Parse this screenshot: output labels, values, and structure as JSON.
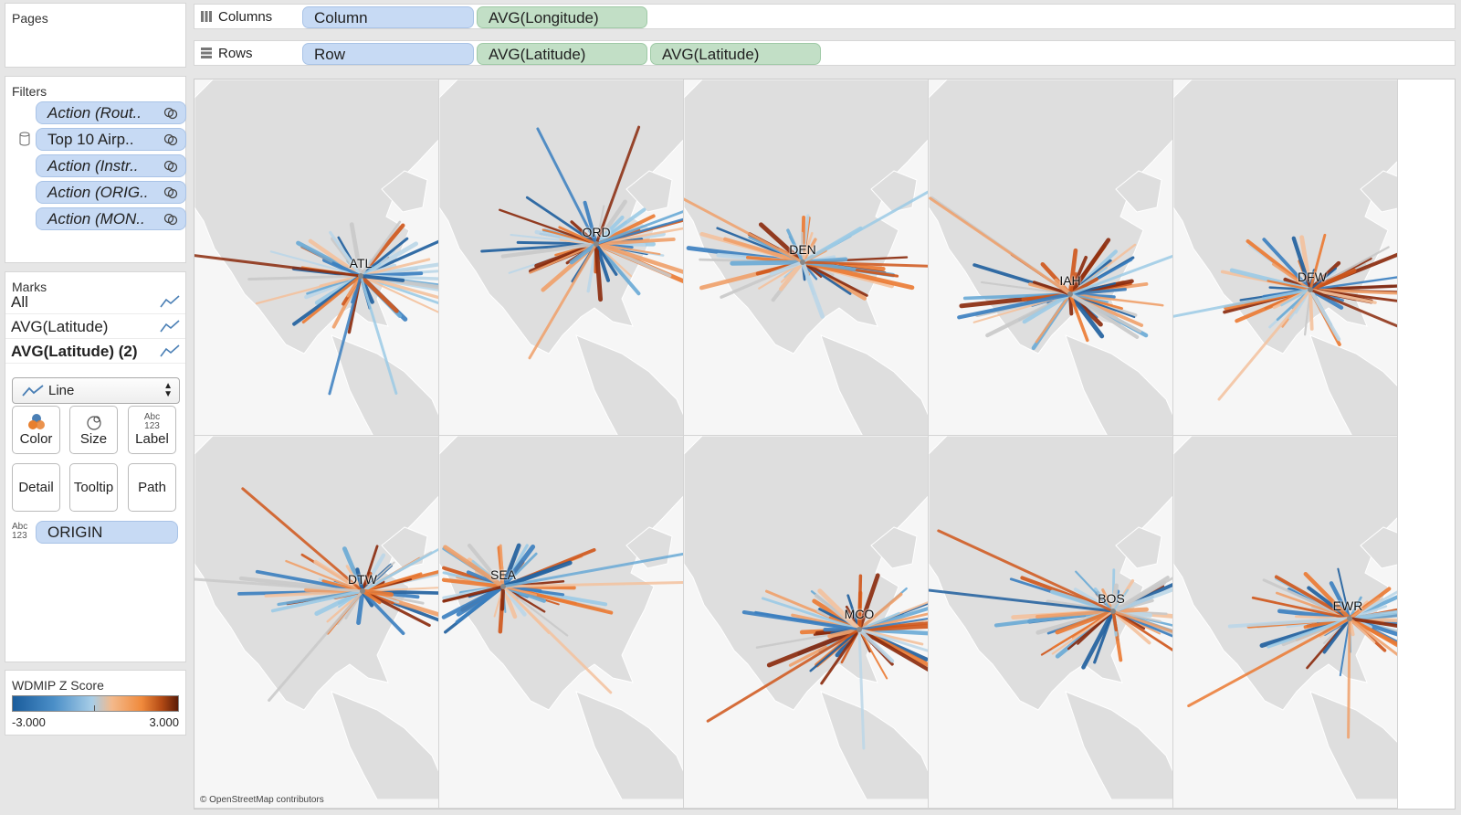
{
  "pages": {
    "title": "Pages"
  },
  "filters": {
    "title": "Filters",
    "items": [
      {
        "label": "Action (Rout..",
        "italic": true
      },
      {
        "label": "Top 10 Airp..",
        "italic": false
      },
      {
        "label": "Action (Instr..",
        "italic": true
      },
      {
        "label": "Action (ORIG..",
        "italic": true
      },
      {
        "label": "Action (MON..",
        "italic": true
      }
    ]
  },
  "marks": {
    "title": "Marks",
    "layers": [
      "All",
      "AVG(Latitude)",
      "AVG(Latitude) (2)"
    ],
    "mark_type": "Line",
    "cards": [
      "Color",
      "Size",
      "Label",
      "Detail",
      "Tooltip",
      "Path"
    ],
    "label_icon_text": [
      "Abc",
      "123"
    ],
    "detail_field": "ORIGIN"
  },
  "legend": {
    "title": "WDMIP Z Score",
    "min": "-3.000",
    "max": "3.000",
    "colors": [
      "#1a5c9c",
      "#a7cde7",
      "#f08a3c",
      "#5b1c08"
    ]
  },
  "shelves": {
    "columns_label": "Columns",
    "columns": [
      {
        "label": "Column",
        "kind": "blue"
      },
      {
        "label": "AVG(Longitude)",
        "kind": "green"
      }
    ],
    "rows_label": "Rows",
    "rows": [
      {
        "label": "Row",
        "kind": "blue"
      },
      {
        "label": "AVG(Latitude)",
        "kind": "green"
      },
      {
        "label": "AVG(Latitude)",
        "kind": "green"
      }
    ]
  },
  "airports": [
    "ATL",
    "ORD",
    "DEN",
    "IAH",
    "DFW",
    "DTW",
    "SEA",
    "MCO",
    "BOS",
    "EWR"
  ],
  "attribution": "© OpenStreetMap contributors"
}
